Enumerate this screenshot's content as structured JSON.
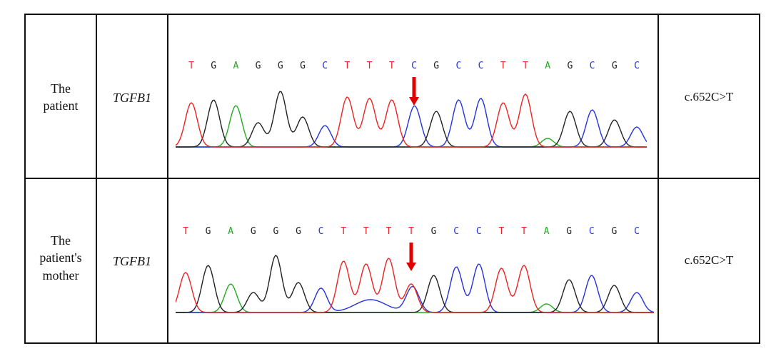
{
  "colors": {
    "A": "#22aa22",
    "C": "#2233dd",
    "G": "#222222",
    "T": "#ee2222",
    "arrow": "#e00000",
    "border": "#111111"
  },
  "rows": [
    {
      "sample": "The patient",
      "sample_lines": [
        "The",
        "patient"
      ],
      "gene": "TGFB1",
      "variant": "c.652C>T",
      "sequence": [
        "T",
        "G",
        "A",
        "G",
        "G",
        "G",
        "C",
        "T",
        "T",
        "T",
        "C",
        "G",
        "C",
        "C",
        "T",
        "T",
        "A",
        "G",
        "C",
        "G",
        "C"
      ],
      "mutation_index": 10
    },
    {
      "sample": "The patient's mother",
      "sample_lines": [
        "The",
        "patient's",
        "mother"
      ],
      "gene": "TGFB1",
      "variant": "c.652C>T",
      "sequence": [
        "T",
        "G",
        "A",
        "G",
        "G",
        "G",
        "C",
        "T",
        "T",
        "T",
        "T",
        "G",
        "C",
        "C",
        "T",
        "T",
        "A",
        "G",
        "C",
        "G",
        "C"
      ],
      "mutation_index": 10
    }
  ]
}
